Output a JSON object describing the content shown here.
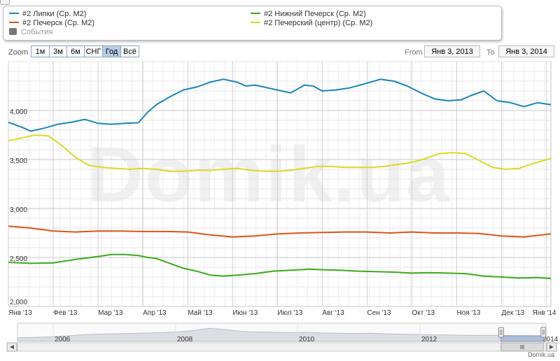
{
  "legend": {
    "items": [
      {
        "label": "#2 Липки (Ср. М2)",
        "color": "#1a86b8",
        "kind": "line"
      },
      {
        "label": "#2 Нижний Печерск (Ср. М2)",
        "color": "#3aaa1c",
        "kind": "line"
      },
      {
        "label": "#2 Печерск (Ср. М2)",
        "color": "#d9561a",
        "kind": "line"
      },
      {
        "label": "#2 Печерский (центр) (Ср. М2)",
        "color": "#dada24",
        "kind": "line"
      },
      {
        "label": "События",
        "color": "#777777",
        "kind": "box"
      }
    ]
  },
  "zoom": {
    "label": "Zoom",
    "buttons": [
      "1м",
      "3м",
      "6м",
      "СНГ",
      "Год",
      "Всё"
    ],
    "active": "Год"
  },
  "range": {
    "from_label": "From",
    "from_value": "Янв 3, 2013",
    "to_label": "To",
    "to_value": "Янв 3, 2014"
  },
  "watermark": "Domik.ua",
  "credit": "Domik.ua",
  "chart_data": {
    "type": "line",
    "x_tick_labels": [
      "Янв '13",
      "Фев '13",
      "Мар '13",
      "Апр '13",
      "Май '13",
      "Июн '13",
      "Июл '13",
      "Авг '13",
      "Сен '13",
      "Окт '13",
      "Ноя '13",
      "Дек '13",
      "Янв '14"
    ],
    "y_ticks": [
      2000,
      2500,
      3000,
      3500,
      4000
    ],
    "y_tick_labels": [
      "2,000",
      "2,500",
      "3,000",
      "3,500",
      "4,000"
    ],
    "ylim": [
      2000,
      4500
    ],
    "grid": true,
    "legend_position": "top",
    "x_month_index_note": "x values are months since Jan 3, 2013",
    "series": [
      {
        "name": "#2 Липки (Ср. М2)",
        "color": "#1a86b8",
        "x": [
          0,
          0.3,
          0.5,
          0.8,
          1.1,
          1.4,
          1.7,
          2.0,
          2.3,
          2.6,
          2.9,
          3.1,
          3.3,
          3.6,
          3.9,
          4.2,
          4.5,
          4.8,
          5.1,
          5.3,
          5.5,
          5.7,
          6.0,
          6.3,
          6.6,
          6.8,
          7.0,
          7.3,
          7.6,
          8.0,
          8.3,
          8.6,
          8.9,
          9.2,
          9.5,
          9.8,
          10.1,
          10.3,
          10.6,
          10.9,
          11.2,
          11.5,
          11.8,
          12.1
        ],
        "y": [
          3880,
          3830,
          3790,
          3820,
          3860,
          3880,
          3910,
          3870,
          3860,
          3870,
          3875,
          3980,
          4060,
          4140,
          4210,
          4240,
          4290,
          4320,
          4290,
          4250,
          4260,
          4240,
          4210,
          4180,
          4260,
          4250,
          4200,
          4210,
          4230,
          4280,
          4320,
          4300,
          4250,
          4180,
          4120,
          4100,
          4110,
          4150,
          4200,
          4100,
          4080,
          4040,
          4080,
          4060
        ]
      },
      {
        "name": "#2 Нижний Печерск (Ср. М2)",
        "color": "#3aaa1c",
        "x": [
          0,
          0.5,
          1.0,
          1.5,
          2.0,
          2.3,
          2.6,
          2.9,
          3.1,
          3.3,
          3.6,
          3.9,
          4.2,
          4.5,
          4.8,
          5.1,
          5.5,
          5.9,
          6.3,
          6.7,
          7.0,
          7.4,
          7.8,
          8.2,
          8.6,
          9.0,
          9.4,
          9.8,
          10.2,
          10.6,
          11.0,
          11.4,
          11.8,
          12.1
        ],
        "y": [
          2450,
          2440,
          2445,
          2480,
          2510,
          2530,
          2530,
          2520,
          2500,
          2490,
          2440,
          2390,
          2360,
          2320,
          2310,
          2320,
          2335,
          2360,
          2370,
          2380,
          2375,
          2370,
          2360,
          2355,
          2350,
          2340,
          2345,
          2340,
          2335,
          2310,
          2300,
          2290,
          2295,
          2285
        ]
      },
      {
        "name": "#2 Печерск (Ср. М2)",
        "color": "#d9561a",
        "x": [
          0,
          0.5,
          1.0,
          1.5,
          2.0,
          2.5,
          3.0,
          3.5,
          4.0,
          4.5,
          5.0,
          5.5,
          6.0,
          6.5,
          7.0,
          7.5,
          8.0,
          8.5,
          9.0,
          9.5,
          10.0,
          10.5,
          11.0,
          11.5,
          12.1
        ],
        "y": [
          2820,
          2800,
          2770,
          2760,
          2770,
          2770,
          2765,
          2765,
          2760,
          2730,
          2710,
          2720,
          2740,
          2750,
          2755,
          2760,
          2760,
          2750,
          2760,
          2750,
          2750,
          2745,
          2720,
          2710,
          2740
        ]
      },
      {
        "name": "#2 Печерский (центр) (Ср. М2)",
        "color": "#dada24",
        "x": [
          0,
          0.3,
          0.6,
          0.9,
          1.2,
          1.5,
          1.8,
          2.1,
          2.4,
          2.7,
          3.0,
          3.3,
          3.6,
          3.9,
          4.2,
          4.5,
          4.8,
          5.1,
          5.4,
          5.7,
          6.0,
          6.3,
          6.6,
          6.9,
          7.2,
          7.5,
          7.8,
          8.1,
          8.4,
          8.7,
          9.0,
          9.3,
          9.6,
          9.9,
          10.2,
          10.5,
          10.8,
          11.1,
          11.4,
          11.7,
          12.1
        ],
        "y": [
          3690,
          3720,
          3750,
          3740,
          3640,
          3520,
          3440,
          3420,
          3410,
          3400,
          3410,
          3400,
          3380,
          3380,
          3390,
          3390,
          3400,
          3410,
          3390,
          3380,
          3380,
          3390,
          3410,
          3430,
          3430,
          3420,
          3420,
          3420,
          3430,
          3450,
          3470,
          3510,
          3560,
          3570,
          3560,
          3490,
          3420,
          3400,
          3410,
          3460,
          3510
        ]
      }
    ]
  },
  "navigator": {
    "year_labels": [
      "2006",
      "2008",
      "2010",
      "2012",
      "2014"
    ],
    "profile": [
      0.2,
      0.22,
      0.25,
      0.3,
      0.36,
      0.4,
      0.42,
      0.44,
      0.46,
      0.48,
      0.52,
      0.6,
      0.72,
      0.65,
      0.55,
      0.52,
      0.5,
      0.48,
      0.5,
      0.47,
      0.45,
      0.44,
      0.45,
      0.42,
      0.4,
      0.38,
      0.36,
      0.35,
      0.34,
      0.33,
      0.33,
      0.32,
      0.31,
      0.3
    ],
    "window_start": 0.915,
    "window_end": 0.995
  }
}
